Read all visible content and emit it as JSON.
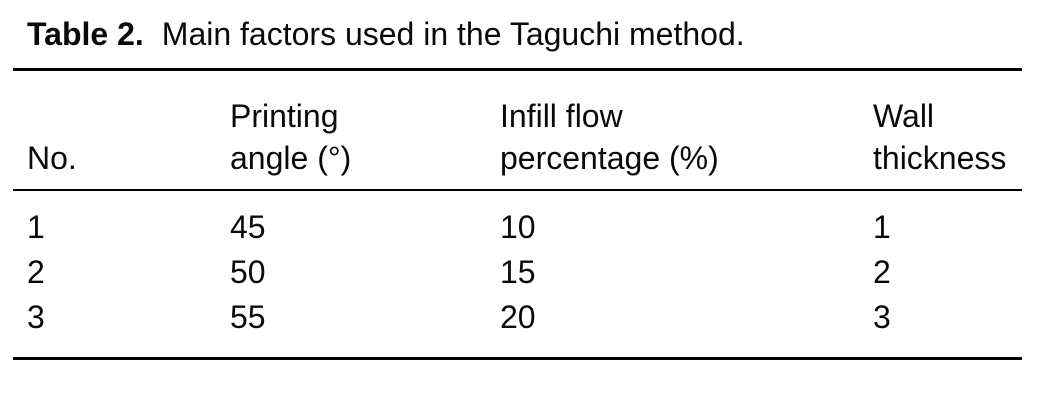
{
  "table": {
    "label": "Table 2.",
    "caption": "Main factors used in the Taguchi method.",
    "columns": [
      {
        "lines": [
          "No."
        ]
      },
      {
        "lines": [
          "Printing",
          "angle (°)"
        ]
      },
      {
        "lines": [
          "Infill flow",
          "percentage (%)"
        ]
      },
      {
        "lines": [
          "Wall",
          "thickness"
        ]
      }
    ],
    "rows": [
      [
        "1",
        "45",
        "10",
        "1"
      ],
      [
        "2",
        "50",
        "15",
        "2"
      ],
      [
        "3",
        "55",
        "20",
        "3"
      ]
    ],
    "colors": {
      "text": "#0a0a0a",
      "rule": "#000000",
      "background": "#ffffff"
    }
  }
}
